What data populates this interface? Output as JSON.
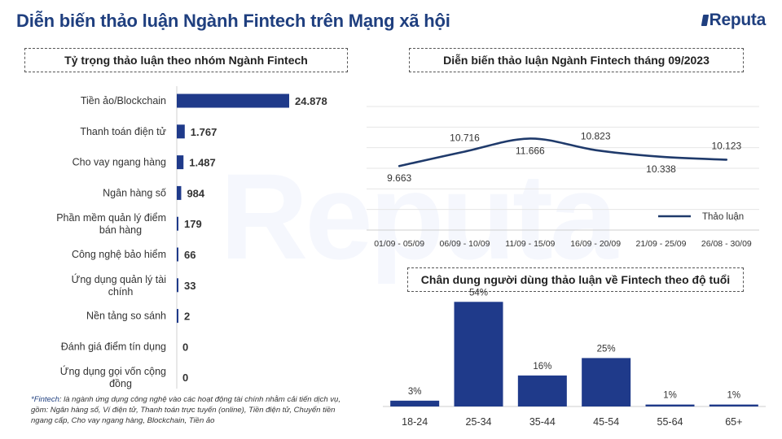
{
  "header": {
    "title": "Diễn biến thảo luận Ngành Fintech trên Mạng xã hội",
    "logo": "Reputa"
  },
  "watermark": "Reputa",
  "colors": {
    "bar": "#1f3a8a",
    "line": "#1f3a6b",
    "title": "#1f3f7f"
  },
  "panels": {
    "left_title": "Tỷ trọng thảo luận theo nhóm Ngành Fintech",
    "top_right_title": "Diễn biến thảo luận Ngành Fintech tháng 09/2023",
    "bottom_right_title": "Chân dung người dùng thảo luận về Fintech theo độ tuổi"
  },
  "footnote": {
    "mark": "*Fintech",
    "text": ": là ngành ứng dụng công nghệ vào các hoạt động tài chính nhằm cải tiến dịch vụ, gồm: Ngân hàng số, Ví điện tử, Thanh toán trực tuyến (online), Tiền điện tử, Chuyển tiền ngang cấp, Cho vay ngang hàng, Blockchain, Tiền ảo"
  },
  "chart_data": [
    {
      "type": "bar",
      "orientation": "horizontal",
      "title": "Tỷ trọng thảo luận theo nhóm Ngành Fintech",
      "categories": [
        "Tiền ảo/Blockchain",
        "Thanh toán điện tử",
        "Cho vay ngang hàng",
        "Ngân hàng số",
        "Phần mềm quản lý điểm bán hàng",
        "Công nghệ bảo hiểm",
        "Ứng dụng quản lý tài chính",
        "Nền tảng so sánh",
        "Đánh giá điểm tín dụng",
        "Ứng dụng gọi vốn cộng đồng"
      ],
      "values": [
        24878,
        1767,
        1487,
        984,
        179,
        66,
        33,
        2,
        0,
        0
      ],
      "labels": [
        "24.878",
        "1.767",
        "1.487",
        "984",
        "179",
        "66",
        "33",
        "2",
        "0",
        "0"
      ]
    },
    {
      "type": "line",
      "title": "Diễn biến thảo luận Ngành Fintech tháng 09/2023",
      "categories": [
        "01/09 - 05/09",
        "06/09 - 10/09",
        "11/09 - 15/09",
        "16/09 - 20/09",
        "21/09 - 25/09",
        "26/08 - 30/09"
      ],
      "series": [
        {
          "name": "Thảo luận",
          "values": [
            9663,
            10716,
            11666,
            10823,
            10338,
            10123
          ],
          "labels": [
            "9.663",
            "10.716",
            "11.666",
            "10.823",
            "10.338",
            "10.123"
          ]
        }
      ],
      "ylim": [
        5000,
        14000
      ],
      "grid": true,
      "legend": "bottom-right"
    },
    {
      "type": "bar",
      "title": "Chân dung người dùng thảo luận về Fintech theo độ tuổi",
      "categories": [
        "18-24",
        "25-34",
        "35-44",
        "45-54",
        "55-64",
        "65+"
      ],
      "values": [
        3,
        54,
        16,
        25,
        1,
        1
      ],
      "labels": [
        "3%",
        "54%",
        "16%",
        "25%",
        "1%",
        "1%"
      ],
      "ylim": [
        0,
        60
      ]
    }
  ]
}
